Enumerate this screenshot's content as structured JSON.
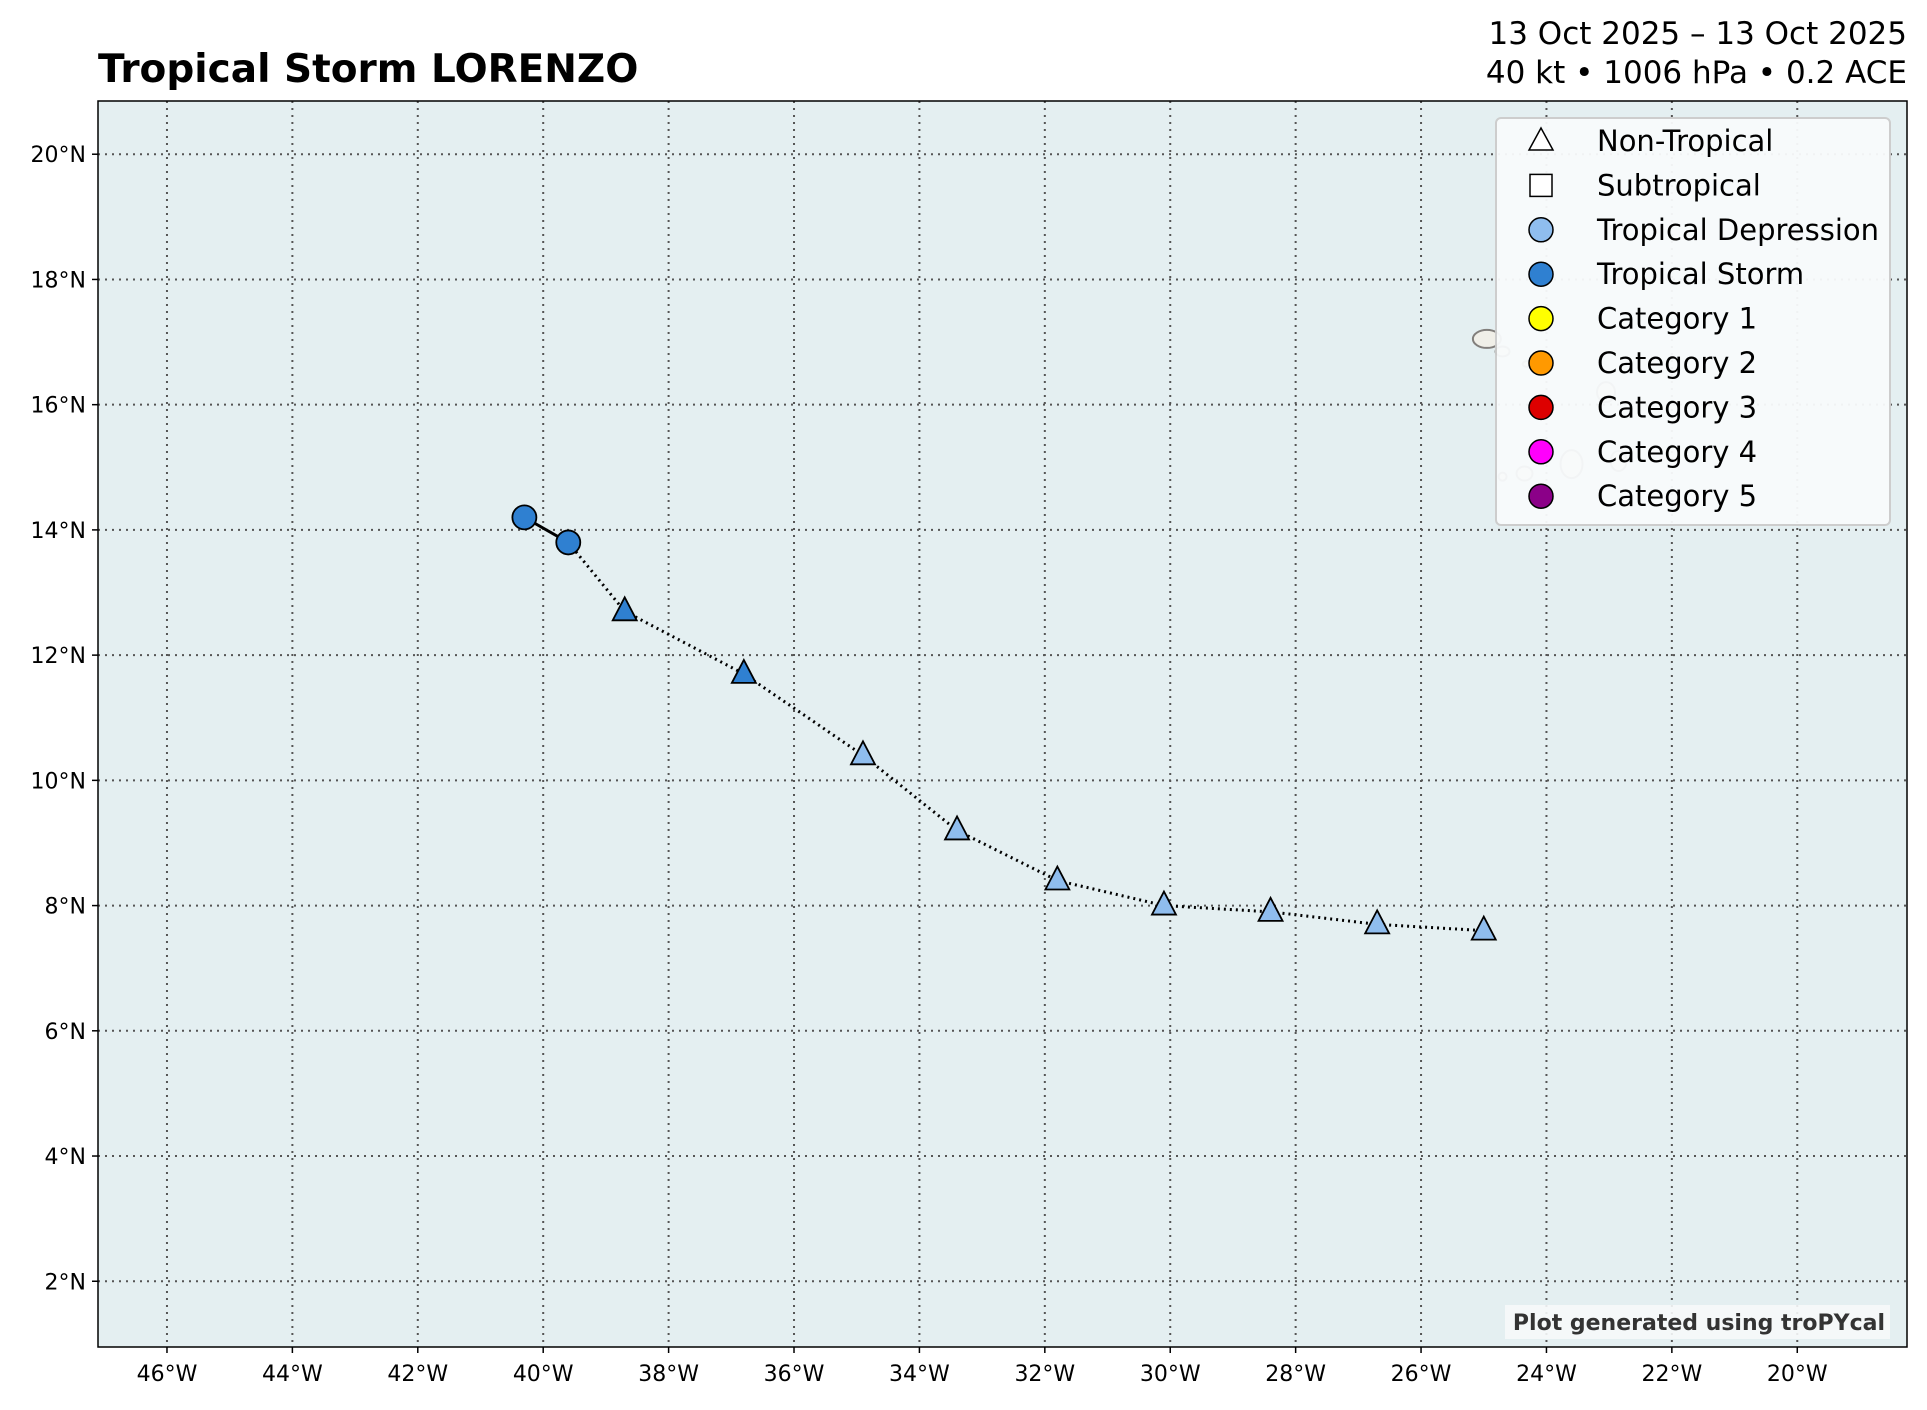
{
  "chart_data": {
    "type": "scatter",
    "title": "Tropical Storm LORENZO",
    "subtitle_line1": "13 Oct 2025 – 13 Oct 2025",
    "subtitle_line2": "40 kt • 1006 hPa • 0.2 ACE",
    "credit": "Plot generated using troPYcal",
    "xlim": [
      -47.1,
      -18.25
    ],
    "ylim": [
      0.95,
      20.85
    ],
    "grid": true,
    "x_ticks": [
      -46,
      -44,
      -42,
      -40,
      -38,
      -36,
      -34,
      -32,
      -30,
      -28,
      -26,
      -24,
      -22,
      -20
    ],
    "x_tick_labels": [
      "46°W",
      "44°W",
      "42°W",
      "40°W",
      "38°W",
      "36°W",
      "34°W",
      "32°W",
      "30°W",
      "28°W",
      "26°W",
      "24°W",
      "22°W",
      "20°W"
    ],
    "y_ticks": [
      2,
      4,
      6,
      8,
      10,
      12,
      14,
      16,
      18,
      20
    ],
    "y_tick_labels": [
      "2°N",
      "4°N",
      "6°N",
      "8°N",
      "10°N",
      "12°N",
      "14°N",
      "16°N",
      "18°N",
      "20°N"
    ],
    "legend_position": "top-right",
    "legend": [
      {
        "label": "Non-Tropical",
        "marker": "triangle",
        "color": "#ffffff"
      },
      {
        "label": "Subtropical",
        "marker": "square",
        "color": "#ffffff"
      },
      {
        "label": "Tropical Depression",
        "marker": "circle",
        "color": "#8fbdee"
      },
      {
        "label": "Tropical Storm",
        "marker": "circle",
        "color": "#2f80d1"
      },
      {
        "label": "Category 1",
        "marker": "circle",
        "color": "#ffff00"
      },
      {
        "label": "Category 2",
        "marker": "circle",
        "color": "#ff9900"
      },
      {
        "label": "Category 3",
        "marker": "circle",
        "color": "#dd0000"
      },
      {
        "label": "Category 4",
        "marker": "circle",
        "color": "#ff00fc"
      },
      {
        "label": "Category 5",
        "marker": "circle",
        "color": "#8b0088"
      }
    ],
    "track": [
      {
        "lon": -40.3,
        "lat": 14.2,
        "type": "tropical",
        "intensity": "Tropical Storm"
      },
      {
        "lon": -39.6,
        "lat": 13.8,
        "type": "tropical",
        "intensity": "Tropical Storm"
      },
      {
        "lon": -38.7,
        "lat": 12.7,
        "type": "non-tropical",
        "intensity": "Tropical Storm"
      },
      {
        "lon": -36.8,
        "lat": 11.7,
        "type": "non-tropical",
        "intensity": "Tropical Storm"
      },
      {
        "lon": -34.9,
        "lat": 10.4,
        "type": "non-tropical",
        "intensity": "Tropical Depression"
      },
      {
        "lon": -33.4,
        "lat": 9.2,
        "type": "non-tropical",
        "intensity": "Tropical Depression"
      },
      {
        "lon": -31.8,
        "lat": 8.4,
        "type": "non-tropical",
        "intensity": "Tropical Depression"
      },
      {
        "lon": -30.1,
        "lat": 8.0,
        "type": "non-tropical",
        "intensity": "Tropical Depression"
      },
      {
        "lon": -28.4,
        "lat": 7.9,
        "type": "non-tropical",
        "intensity": "Tropical Depression"
      },
      {
        "lon": -26.7,
        "lat": 7.7,
        "type": "non-tropical",
        "intensity": "Tropical Depression"
      },
      {
        "lon": -25.0,
        "lat": 7.6,
        "type": "non-tropical",
        "intensity": "Tropical Depression"
      }
    ],
    "colors": {
      "ocean": "#e4eff1",
      "land": "#f4efe6",
      "coast": "#6a6460"
    }
  }
}
